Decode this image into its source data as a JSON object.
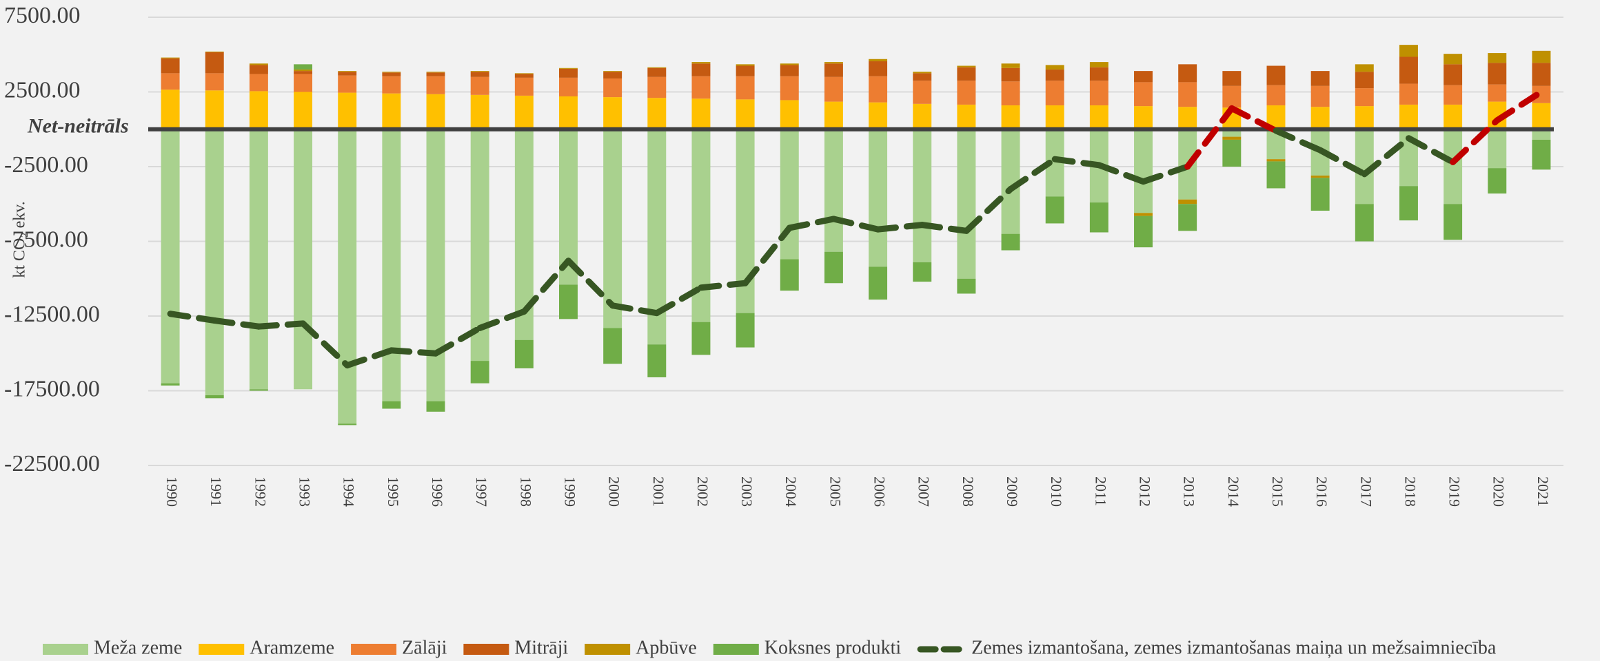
{
  "chart_data": {
    "type": "bar",
    "stacked": true,
    "y_label": "kt CO₂ ekv.",
    "annotation": "Net-neitrāls",
    "categories": [
      "1990",
      "1991",
      "1992",
      "1993",
      "1994",
      "1995",
      "1996",
      "1997",
      "1998",
      "1999",
      "2000",
      "2001",
      "2002",
      "2003",
      "2004",
      "2005",
      "2006",
      "2007",
      "2008",
      "2009",
      "2010",
      "2011",
      "2012",
      "2013",
      "2014",
      "2015",
      "2016",
      "2017",
      "2018",
      "2019",
      "2020",
      "2021"
    ],
    "series": [
      {
        "name": "Meža zeme",
        "color": "#a9d18e",
        "values": [
          -17000,
          -17800,
          -17400,
          -17400,
          -19700,
          -18200,
          -18200,
          -15500,
          -14100,
          -10400,
          -13300,
          -14400,
          -12900,
          -12300,
          -8700,
          -8200,
          -9200,
          -8900,
          -10000,
          -7000,
          -4500,
          -4900,
          -5600,
          -4700,
          -500,
          -2000,
          -3100,
          -5000,
          -3800,
          -5000,
          -2600,
          -700
        ]
      },
      {
        "name": "Aramzeme",
        "color": "#ffc000",
        "values": [
          2650,
          2600,
          2550,
          2500,
          2450,
          2400,
          2350,
          2300,
          2250,
          2200,
          2150,
          2100,
          2050,
          2000,
          1950,
          1850,
          1800,
          1700,
          1650,
          1600,
          1600,
          1600,
          1550,
          1500,
          1450,
          1600,
          1500,
          1550,
          1650,
          1650,
          1850,
          1750
        ]
      },
      {
        "name": "Zālāji",
        "color": "#ed7d31",
        "values": [
          1100,
          1150,
          1150,
          1200,
          1150,
          1150,
          1200,
          1200,
          1200,
          1250,
          1250,
          1400,
          1500,
          1550,
          1600,
          1650,
          1750,
          1550,
          1600,
          1600,
          1650,
          1650,
          1600,
          1650,
          1450,
          1350,
          1400,
          1200,
          1400,
          1300,
          1150,
          1150
        ]
      },
      {
        "name": "Mitrāji",
        "color": "#c55a11",
        "values": [
          1000,
          1400,
          600,
          200,
          250,
          250,
          250,
          350,
          250,
          600,
          450,
          600,
          850,
          700,
          750,
          900,
          1000,
          500,
          900,
          900,
          750,
          900,
          750,
          1200,
          1000,
          1300,
          1000,
          1100,
          1800,
          1400,
          1450,
          1550
        ]
      },
      {
        "name": "Apbūve",
        "color": "#bf9000",
        "values": [
          50,
          50,
          100,
          100,
          50,
          50,
          50,
          50,
          50,
          50,
          50,
          50,
          100,
          100,
          100,
          100,
          150,
          100,
          100,
          300,
          300,
          350,
          -200,
          -300,
          -200,
          -150,
          -150,
          500,
          800,
          700,
          650,
          800
        ]
      },
      {
        "name": "Koksnes produkti",
        "color": "#70ad47",
        "values": [
          -150,
          -200,
          -100,
          350,
          -100,
          -500,
          -700,
          -1500,
          -1900,
          -2300,
          -2400,
          -2200,
          -2200,
          -2300,
          -2100,
          -2100,
          -2200,
          -1300,
          -1000,
          -1100,
          -1800,
          -2000,
          -2100,
          -1800,
          -1800,
          -1800,
          -2200,
          -2500,
          -2300,
          -2400,
          -1700,
          -2000
        ]
      },
      {
        "name": "Zemes izmantošana, zemes izmantošanas maiņa un mežsaimniecība",
        "type": "line",
        "color": "#375623",
        "positive_color": "#c00000",
        "values": [
          -12350,
          -12800,
          -13200,
          -13000,
          -15800,
          -14800,
          -15000,
          -13300,
          -12200,
          -8800,
          -11800,
          -12300,
          -10600,
          -10300,
          -6600,
          -6000,
          -6700,
          -6400,
          -6800,
          -4000,
          -2000,
          -2400,
          -3500,
          -2500,
          1400,
          -100,
          -1400,
          -3000,
          -600,
          -2200,
          600,
          2500
        ]
      }
    ],
    "ylim": [
      -22500,
      7500
    ],
    "yticks": [
      {
        "value": -22500,
        "label": "-22500.00"
      },
      {
        "value": -17500,
        "label": "-17500.00"
      },
      {
        "value": -12500,
        "label": "-12500.00"
      },
      {
        "value": -7500,
        "label": "-7500.00"
      },
      {
        "value": -2500,
        "label": "-2500.00"
      },
      {
        "value": 2500,
        "label": "2500.00"
      },
      {
        "value": 7500,
        "label": "7500.00"
      }
    ],
    "grid": true,
    "legend": "bottom"
  }
}
